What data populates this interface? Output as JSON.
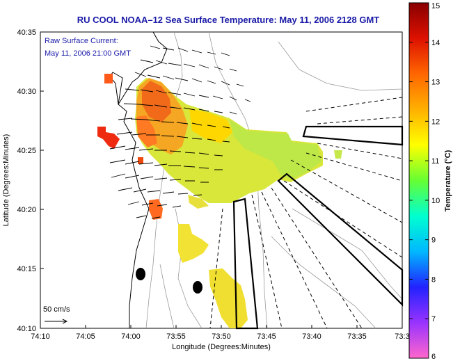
{
  "title": "RU COOL  NOAA–12  Sea Surface Temperature:  May 11, 2006 2128 GMT",
  "current_legend": {
    "line1": "Raw Surface Current:",
    "line2": "May 11, 2006 21:00 GMT"
  },
  "scale": {
    "label": "50 cm/s"
  },
  "axes": {
    "xlabel": "Longitude (Degrees:Minutes)",
    "ylabel": "Latitude (Degrees:Minutes)",
    "xticks": [
      "74:10",
      "74:05",
      "74:00",
      "73:55",
      "73:50",
      "73:45",
      "73:40",
      "73:35",
      "73:3"
    ],
    "yticks": [
      "40:35",
      "40:30",
      "40:25",
      "40:20",
      "40:15",
      "40:10"
    ]
  },
  "colorbar": {
    "title": "Temperature (°C)",
    "ticks": [
      "15",
      "14",
      "13",
      "12",
      "11",
      "10",
      "9",
      "8",
      "7",
      "6"
    ],
    "range": [
      6,
      15
    ],
    "colors": [
      "#ff66cc",
      "#9933ff",
      "#2222ff",
      "#00b8ff",
      "#00ffd0",
      "#66ff33",
      "#ffff00",
      "#ffb000",
      "#ff6600",
      "#dd1100",
      "#880000"
    ]
  }
}
